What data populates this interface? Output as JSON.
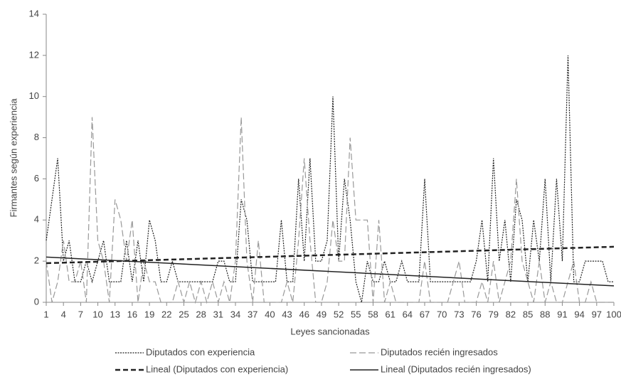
{
  "chart_data": {
    "type": "line",
    "y_label": "Firmantes según experiencia",
    "x_label": "Leyes sancionadas",
    "x": [
      1,
      2,
      3,
      4,
      5,
      6,
      7,
      8,
      9,
      10,
      11,
      12,
      13,
      14,
      15,
      16,
      17,
      18,
      19,
      20,
      21,
      22,
      23,
      24,
      25,
      26,
      27,
      28,
      29,
      30,
      31,
      32,
      33,
      34,
      35,
      36,
      37,
      38,
      39,
      40,
      41,
      42,
      43,
      44,
      45,
      46,
      47,
      48,
      49,
      50,
      51,
      52,
      53,
      54,
      55,
      56,
      57,
      58,
      59,
      60,
      61,
      62,
      63,
      64,
      65,
      66,
      67,
      68,
      69,
      70,
      71,
      72,
      73,
      74,
      75,
      76,
      77,
      78,
      79,
      80,
      81,
      82,
      83,
      84,
      85,
      86,
      87,
      88,
      89,
      90,
      91,
      92,
      93,
      94,
      95,
      96,
      97,
      98,
      99,
      100
    ],
    "xlim": [
      1,
      100
    ],
    "xticks": [
      1,
      4,
      7,
      10,
      13,
      16,
      19,
      22,
      25,
      28,
      31,
      34,
      37,
      40,
      43,
      46,
      49,
      52,
      55,
      58,
      61,
      64,
      67,
      70,
      73,
      76,
      79,
      82,
      85,
      88,
      91,
      94,
      97,
      100
    ],
    "ylim": [
      0,
      14
    ],
    "yticks": [
      0,
      2,
      4,
      6,
      8,
      10,
      12,
      14
    ],
    "legend": "bottom",
    "series": [
      {
        "name": "Diputados con experiencia",
        "color": "#222222",
        "line_style": "dotted",
        "values": [
          3,
          5,
          7,
          2,
          3,
          1,
          1,
          2,
          1,
          2,
          3,
          1,
          1,
          1,
          3,
          1,
          3,
          1,
          4,
          3,
          1,
          1,
          2,
          1,
          1,
          1,
          1,
          1,
          1,
          1,
          2,
          2,
          1,
          1,
          5,
          4,
          1,
          1,
          1,
          1,
          1,
          4,
          1,
          1,
          6,
          2,
          7,
          2,
          2,
          3,
          10,
          2,
          6,
          4,
          1,
          0,
          2,
          1,
          1,
          2,
          1,
          1,
          2,
          1,
          1,
          1,
          6,
          1,
          1,
          1,
          1,
          1,
          1,
          1,
          1,
          2,
          4,
          1,
          7,
          2,
          4,
          1,
          5,
          4,
          1,
          4,
          2,
          6,
          1,
          6,
          2,
          12,
          1,
          1,
          2,
          2,
          2,
          2,
          1,
          1
        ]
      },
      {
        "name": "Diputados recién ingresados",
        "color": "#999999",
        "line_style": "long-dash",
        "values": [
          2,
          0,
          1,
          3,
          1,
          1,
          2,
          0,
          9,
          3,
          2,
          0,
          5,
          4,
          2,
          4,
          0,
          2,
          1,
          1,
          0,
          0,
          0,
          1,
          0,
          1,
          0,
          1,
          0,
          1,
          0,
          1,
          0,
          2,
          9,
          2,
          0,
          3,
          0,
          0,
          0,
          0,
          1,
          0,
          3,
          7,
          3,
          0,
          0,
          1,
          4,
          2,
          2,
          8,
          4,
          4,
          4,
          0,
          4,
          0,
          1,
          0,
          0,
          0,
          0,
          0,
          2,
          0,
          0,
          0,
          0,
          1,
          2,
          0,
          0,
          0,
          1,
          0,
          2,
          0,
          1,
          2,
          6,
          2,
          1,
          0,
          2,
          0,
          1,
          0,
          0,
          1,
          2,
          0,
          0,
          1,
          0,
          0,
          0,
          0
        ]
      },
      {
        "name": "Lineal (Diputados con experiencia)",
        "color": "#222222",
        "line_style": "thick-dash",
        "x": [
          1,
          100
        ],
        "values": [
          1.9,
          2.7
        ]
      },
      {
        "name": "Lineal (Diputados recién ingresados)",
        "color": "#222222",
        "line_style": "solid",
        "x": [
          1,
          100
        ],
        "values": [
          2.2,
          0.8
        ]
      }
    ]
  }
}
